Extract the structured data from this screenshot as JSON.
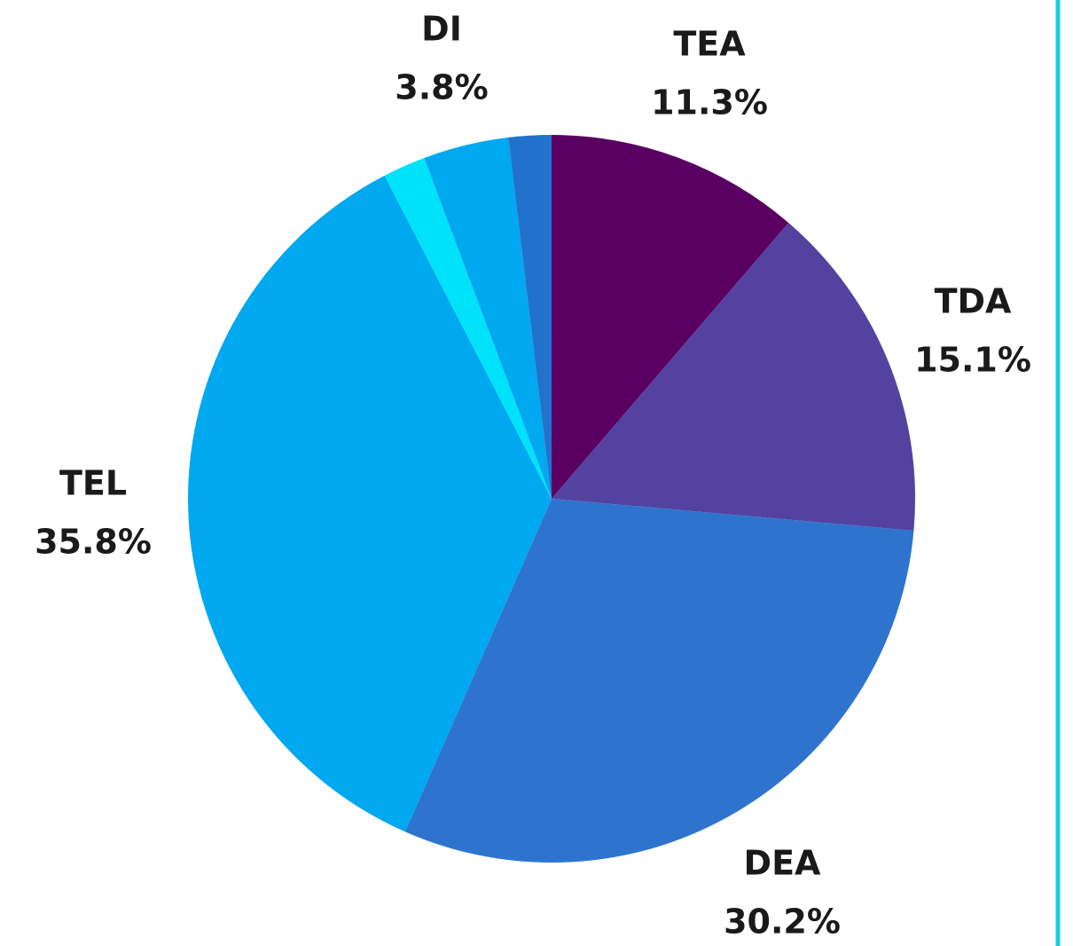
{
  "chart_data": {
    "type": "pie",
    "categories": [
      "TEA",
      "TDA",
      "DEA",
      "TEL",
      null,
      "DI",
      null
    ],
    "values": [
      11.3,
      15.1,
      30.2,
      35.8,
      1.9,
      3.8,
      1.9
    ],
    "value_labels": [
      "11.3%",
      "15.1%",
      "30.2%",
      "35.8%",
      null,
      "3.8%",
      null
    ],
    "colors": [
      "#5a0062",
      "#5442a0",
      "#2e74cf",
      "#00a8ef",
      "#00e2fa",
      "#00a8ef",
      "#2272cc"
    ]
  }
}
